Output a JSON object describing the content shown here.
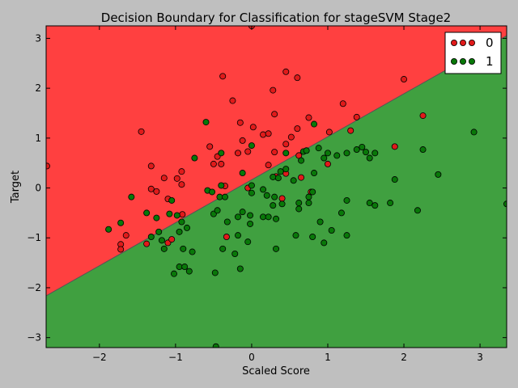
{
  "chart_data": {
    "type": "scatter",
    "title": "Decision Boundary for Classification for stageSVM Stage2",
    "xlabel": "Scaled Score",
    "ylabel": "Target",
    "xlim": [
      -2.7,
      3.35
    ],
    "ylim": [
      -3.2,
      3.25
    ],
    "xticks": [
      -2,
      -1,
      0,
      1,
      2,
      3
    ],
    "yticks": [
      -3,
      -2,
      -1,
      0,
      1,
      2,
      3
    ],
    "xtick_labels": [
      "−2",
      "−1",
      "0",
      "1",
      "2",
      "3"
    ],
    "ytick_labels": [
      "−3",
      "−2",
      "−1",
      "0",
      "1",
      "2",
      "3"
    ],
    "grid": false,
    "legend_position": "top-right",
    "decision_boundary": {
      "slope": 0.862,
      "intercept": 0.165,
      "above_class": "0",
      "below_class": "1"
    },
    "region_colors": {
      "0": "#ff4040",
      "1": "#40a040"
    },
    "series": [
      {
        "name": "0",
        "color": "#e01a1a",
        "points": [
          [
            -2.69,
            0.44
          ],
          [
            -1.72,
            -1.13
          ],
          [
            -1.72,
            -1.23
          ],
          [
            -1.65,
            -0.95
          ],
          [
            -1.45,
            1.13
          ],
          [
            -1.38,
            -1.12
          ],
          [
            -1.32,
            -0.02
          ],
          [
            -1.32,
            0.44
          ],
          [
            -1.25,
            -0.07
          ],
          [
            -1.15,
            0.2
          ],
          [
            -1.1,
            -0.22
          ],
          [
            -1.1,
            -1.1
          ],
          [
            -1.05,
            -1.03
          ],
          [
            -0.98,
            0.19
          ],
          [
            -0.92,
            0.33
          ],
          [
            -0.92,
            0.07
          ],
          [
            -0.91,
            -0.53
          ],
          [
            -0.55,
            0.83
          ],
          [
            -0.5,
            0.48
          ],
          [
            -0.45,
            0.63
          ],
          [
            -0.4,
            0.48
          ],
          [
            -0.38,
            2.24
          ],
          [
            -0.35,
            0.04
          ],
          [
            -0.33,
            -0.98
          ],
          [
            -0.25,
            1.75
          ],
          [
            -0.18,
            0.7
          ],
          [
            -0.15,
            1.31
          ],
          [
            -0.12,
            0.95
          ],
          [
            -0.05,
            0.73
          ],
          [
            -0.05,
            0.0
          ],
          [
            0.0,
            3.25
          ],
          [
            0.02,
            1.22
          ],
          [
            0.15,
            1.07
          ],
          [
            0.22,
            1.09
          ],
          [
            0.22,
            0.46
          ],
          [
            0.28,
            1.96
          ],
          [
            0.3,
            1.48
          ],
          [
            0.3,
            0.72
          ],
          [
            0.32,
            0.23
          ],
          [
            0.4,
            -0.21
          ],
          [
            0.45,
            2.33
          ],
          [
            0.45,
            0.88
          ],
          [
            0.45,
            0.29
          ],
          [
            0.52,
            1.02
          ],
          [
            0.6,
            2.21
          ],
          [
            0.6,
            1.19
          ],
          [
            0.62,
            0.65
          ],
          [
            0.65,
            0.21
          ],
          [
            0.75,
            1.41
          ],
          [
            0.78,
            -0.08
          ],
          [
            1.0,
            0.48
          ],
          [
            1.02,
            1.12
          ],
          [
            1.2,
            1.69
          ],
          [
            1.3,
            1.15
          ],
          [
            1.38,
            1.42
          ],
          [
            1.88,
            0.83
          ],
          [
            2.0,
            2.18
          ],
          [
            2.25,
            1.45
          ]
        ]
      },
      {
        "name": "1",
        "color": "#087808",
        "points": [
          [
            -1.88,
            -0.83
          ],
          [
            -1.72,
            -0.7
          ],
          [
            -1.58,
            -0.18
          ],
          [
            -1.38,
            -0.5
          ],
          [
            -1.32,
            -0.98
          ],
          [
            -1.25,
            -0.6
          ],
          [
            -1.22,
            -0.88
          ],
          [
            -1.18,
            -1.05
          ],
          [
            -1.15,
            -1.22
          ],
          [
            -1.08,
            -0.52
          ],
          [
            -1.05,
            -0.25
          ],
          [
            -1.02,
            -1.72
          ],
          [
            -0.98,
            -0.55
          ],
          [
            -0.95,
            -0.88
          ],
          [
            -0.95,
            -1.58
          ],
          [
            -0.92,
            -0.68
          ],
          [
            -0.9,
            -1.22
          ],
          [
            -0.88,
            -1.58
          ],
          [
            -0.85,
            -0.8
          ],
          [
            -0.82,
            -1.67
          ],
          [
            -0.78,
            -1.28
          ],
          [
            -0.75,
            0.6
          ],
          [
            -0.6,
            1.32
          ],
          [
            -0.58,
            -0.05
          ],
          [
            -0.52,
            -0.08
          ],
          [
            -0.5,
            -0.52
          ],
          [
            -0.48,
            -1.7
          ],
          [
            -0.45,
            -0.45
          ],
          [
            -0.42,
            -0.18
          ],
          [
            -0.4,
            0.7
          ],
          [
            -0.4,
            0.05
          ],
          [
            -0.38,
            -1.22
          ],
          [
            -0.35,
            -0.18
          ],
          [
            -0.32,
            -0.68
          ],
          [
            -0.22,
            -1.32
          ],
          [
            -0.18,
            -0.58
          ],
          [
            -0.18,
            -0.95
          ],
          [
            -0.15,
            -1.62
          ],
          [
            -0.12,
            -0.48
          ],
          [
            -0.12,
            0.3
          ],
          [
            -0.05,
            -1.08
          ],
          [
            -0.02,
            -0.55
          ],
          [
            -0.02,
            -0.72
          ],
          [
            0.0,
            0.85
          ],
          [
            0.0,
            0.05
          ],
          [
            0.0,
            -0.1
          ],
          [
            0.15,
            -0.03
          ],
          [
            0.15,
            -0.58
          ],
          [
            0.2,
            -0.15
          ],
          [
            0.22,
            -0.58
          ],
          [
            0.28,
            0.22
          ],
          [
            0.28,
            -0.35
          ],
          [
            0.3,
            -0.18
          ],
          [
            0.32,
            -0.62
          ],
          [
            0.32,
            -1.22
          ],
          [
            0.35,
            0.2
          ],
          [
            0.38,
            0.33
          ],
          [
            0.4,
            -0.32
          ],
          [
            0.45,
            0.7
          ],
          [
            0.45,
            0.38
          ],
          [
            0.55,
            0.15
          ],
          [
            0.58,
            -0.95
          ],
          [
            0.62,
            -0.3
          ],
          [
            0.62,
            -0.42
          ],
          [
            0.65,
            0.55
          ],
          [
            0.68,
            0.73
          ],
          [
            0.72,
            0.75
          ],
          [
            0.75,
            -0.18
          ],
          [
            0.75,
            -0.3
          ],
          [
            0.8,
            -0.08
          ],
          [
            0.8,
            -0.98
          ],
          [
            0.82,
            1.28
          ],
          [
            0.82,
            0.3
          ],
          [
            0.88,
            0.8
          ],
          [
            0.9,
            -0.68
          ],
          [
            0.95,
            -1.1
          ],
          [
            0.95,
            0.6
          ],
          [
            1.0,
            0.7
          ],
          [
            1.05,
            -0.85
          ],
          [
            1.12,
            0.65
          ],
          [
            1.18,
            -0.5
          ],
          [
            1.25,
            -0.95
          ],
          [
            1.25,
            -0.25
          ],
          [
            1.25,
            0.7
          ],
          [
            1.38,
            0.77
          ],
          [
            1.45,
            0.82
          ],
          [
            1.5,
            0.72
          ],
          [
            1.55,
            -0.3
          ],
          [
            1.55,
            0.6
          ],
          [
            1.62,
            0.7
          ],
          [
            1.62,
            -0.35
          ],
          [
            1.82,
            -0.3
          ],
          [
            1.88,
            0.17
          ],
          [
            2.18,
            -0.45
          ],
          [
            2.25,
            0.77
          ],
          [
            2.45,
            0.27
          ],
          [
            2.92,
            1.12
          ],
          [
            3.35,
            -0.32
          ],
          [
            -0.47,
            -3.18
          ]
        ]
      }
    ]
  }
}
